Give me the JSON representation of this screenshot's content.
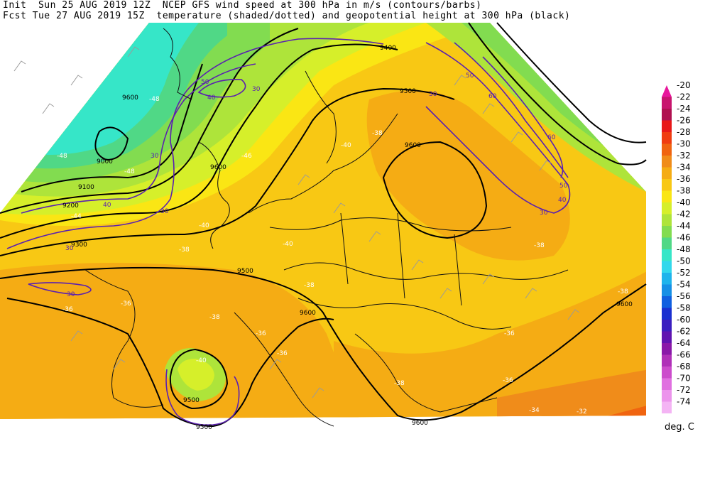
{
  "header": {
    "line1": "Init  Sun 25 AUG 2019 12Z  NCEP GFS wind speed at 300 hPa in m/s (contours/barbs)",
    "line2": "Fcst Tue 27 AUG 2019 15Z  temperature (shaded/dotted) and geopotential height at 300 hPa (black)"
  },
  "legend": {
    "units": "deg. C",
    "levels": [
      {
        "label": "-20",
        "color": "#e8179c"
      },
      {
        "label": "-22",
        "color": "#c8156e"
      },
      {
        "label": "-24",
        "color": "#b01050"
      },
      {
        "label": "-26",
        "color": "#e81818"
      },
      {
        "label": "-28",
        "color": "#f03c10"
      },
      {
        "label": "-30",
        "color": "#f06410"
      },
      {
        "label": "-32",
        "color": "#f08c1a"
      },
      {
        "label": "-34",
        "color": "#f5ac14"
      },
      {
        "label": "-36",
        "color": "#f8c814"
      },
      {
        "label": "-38",
        "color": "#fae614"
      },
      {
        "label": "-40",
        "color": "#d6ef2a"
      },
      {
        "label": "-42",
        "color": "#aee43a"
      },
      {
        "label": "-44",
        "color": "#82dc50"
      },
      {
        "label": "-46",
        "color": "#50d886"
      },
      {
        "label": "-48",
        "color": "#36e6c8"
      },
      {
        "label": "-50",
        "color": "#32d8ec"
      },
      {
        "label": "-52",
        "color": "#1eb4ec"
      },
      {
        "label": "-54",
        "color": "#1690e6"
      },
      {
        "label": "-56",
        "color": "#1060e0"
      },
      {
        "label": "-58",
        "color": "#1a30d0"
      },
      {
        "label": "-60",
        "color": "#3a1ec0"
      },
      {
        "label": "-62",
        "color": "#6014b0"
      },
      {
        "label": "-64",
        "color": "#8a18a8"
      },
      {
        "label": "-66",
        "color": "#b030b8"
      },
      {
        "label": "-68",
        "color": "#cc4ccc"
      },
      {
        "label": "-70",
        "color": "#e070e0"
      },
      {
        "label": "-72",
        "color": "#ec94ec"
      },
      {
        "label": "-74",
        "color": "#f4b4f4"
      }
    ]
  },
  "map": {
    "height_labels": [
      "9400",
      "9500",
      "9600",
      "9500",
      "9500",
      "9600",
      "9600",
      "9600",
      "9500",
      "9600",
      "9000",
      "9100",
      "9200",
      "9300",
      "9600"
    ],
    "wind_labels": [
      "30",
      "40",
      "50",
      "60",
      "30",
      "30",
      "30",
      "40",
      "30",
      "30",
      "50",
      "40",
      "30",
      "50",
      "60"
    ],
    "temp_labels": [
      "-48",
      "-48",
      "-48",
      "-44",
      "-40",
      "-40",
      "-38",
      "-38",
      "-38",
      "-36",
      "-36",
      "-38",
      "-40",
      "-38",
      "-36",
      "-34",
      "-32",
      "-36",
      "-38",
      "-36",
      "-36",
      "-38",
      "-40",
      "-36",
      "-36",
      "-46"
    ]
  }
}
